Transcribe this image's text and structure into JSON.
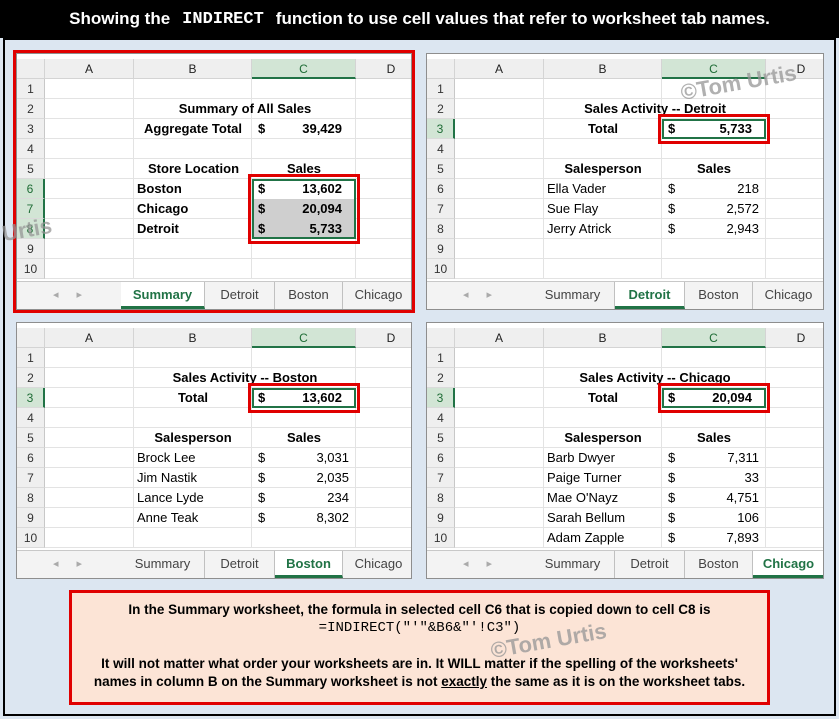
{
  "banner": {
    "pre": "Showing the",
    "fn": "INDIRECT",
    "post": "function to use cell values that refer to worksheet tab names."
  },
  "columns": [
    "A",
    "B",
    "C",
    "D"
  ],
  "rows": [
    "1",
    "2",
    "3",
    "4",
    "5",
    "6",
    "7",
    "8",
    "9",
    "10"
  ],
  "tabs": [
    "Summary",
    "Detroit",
    "Boston",
    "Chicago"
  ],
  "watermark": "©Tom Urtis",
  "summary": {
    "title": "Summary of All Sales",
    "agg_label": "Aggregate Total",
    "agg_dollar": "$",
    "agg_value": "39,429",
    "store_header": "Store Location",
    "sales_header": "Sales",
    "items": [
      {
        "name": "Boston",
        "dollar": "$",
        "value": "13,602"
      },
      {
        "name": "Chicago",
        "dollar": "$",
        "value": "20,094"
      },
      {
        "name": "Detroit",
        "dollar": "$",
        "value": "5,733"
      }
    ]
  },
  "detroit": {
    "title": "Sales Activity -- Detroit",
    "total_label": "Total",
    "total_dollar": "$",
    "total_value": "5,733",
    "sp_header": "Salesperson",
    "sales_header": "Sales",
    "items": [
      {
        "name": "Ella Vader",
        "dollar": "$",
        "value": "218"
      },
      {
        "name": "Sue Flay",
        "dollar": "$",
        "value": "2,572"
      },
      {
        "name": "Jerry Atrick",
        "dollar": "$",
        "value": "2,943"
      }
    ]
  },
  "boston": {
    "title": "Sales Activity -- Boston",
    "total_label": "Total",
    "total_dollar": "$",
    "total_value": "13,602",
    "sp_header": "Salesperson",
    "sales_header": "Sales",
    "items": [
      {
        "name": "Brock Lee",
        "dollar": "$",
        "value": "3,031"
      },
      {
        "name": "Jim Nastik",
        "dollar": "$",
        "value": "2,035"
      },
      {
        "name": "Lance Lyde",
        "dollar": "$",
        "value": "234"
      },
      {
        "name": "Anne Teak",
        "dollar": "$",
        "value": "8,302"
      }
    ]
  },
  "chicago": {
    "title": "Sales Activity -- Chicago",
    "total_label": "Total",
    "total_dollar": "$",
    "total_value": "20,094",
    "sp_header": "Salesperson",
    "sales_header": "Sales",
    "items": [
      {
        "name": "Barb Dwyer",
        "dollar": "$",
        "value": "7,311"
      },
      {
        "name": "Paige Turner",
        "dollar": "$",
        "value": "33"
      },
      {
        "name": "Mae O'Nayz",
        "dollar": "$",
        "value": "4,751"
      },
      {
        "name": "Sarah Bellum",
        "dollar": "$",
        "value": "106"
      },
      {
        "name": "Adam Zapple",
        "dollar": "$",
        "value": "7,893"
      }
    ]
  },
  "note": {
    "line1": "In the Summary worksheet, the formula in selected cell C6 that is copied down to cell C8 is",
    "formula": "=INDIRECT(\"'\"&B6&\"'!C3\")",
    "line3": "It will not matter what order your worksheets are in. It WILL matter if the spelling of the worksheets'",
    "line4a": "names in column B on the Summary worksheet is not",
    "line4u": "exactly",
    "line4b": "the same as it is on the worksheet tabs."
  }
}
